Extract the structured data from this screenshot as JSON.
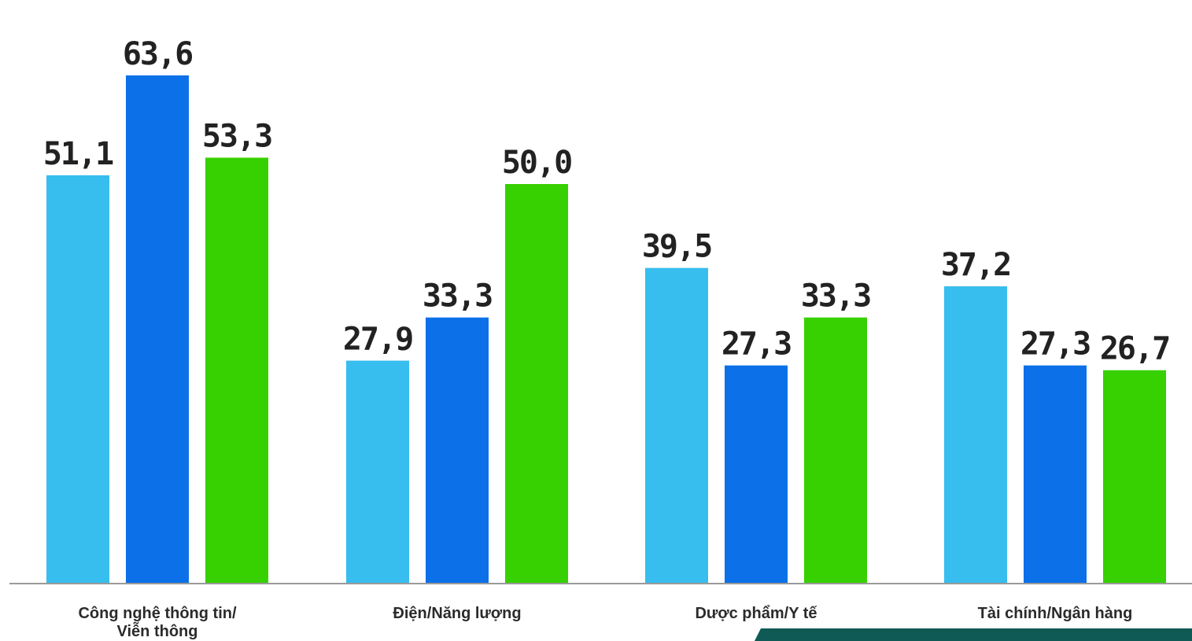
{
  "chart_data": {
    "type": "bar",
    "title": "",
    "xlabel": "",
    "ylabel": "",
    "ylim": [
      0,
      70
    ],
    "grid": false,
    "legend": "none",
    "categories": [
      [
        "Công nghệ thông tin/",
        "Viễn thông"
      ],
      [
        "Điện/Năng lượng"
      ],
      [
        "Dược phẩm/Y tế"
      ],
      [
        "Tài chính/Ngân hàng"
      ]
    ],
    "series": [
      {
        "color": "#37bdee",
        "values": [
          51.1,
          27.9,
          39.5,
          37.2
        ],
        "labels": [
          "51,1",
          "27,9",
          "39,5",
          "37,2"
        ]
      },
      {
        "color": "#0c70e8",
        "values": [
          63.6,
          33.3,
          27.3,
          27.3
        ],
        "labels": [
          "63,6",
          "33,3",
          "27,3",
          "27,3"
        ]
      },
      {
        "color": "#37d000",
        "values": [
          53.3,
          50.0,
          33.3,
          26.7
        ],
        "labels": [
          "53,3",
          "50,0",
          "33,3",
          "26,7"
        ]
      }
    ]
  },
  "colors": {
    "axis": "#9a9a9a",
    "corner_accent": "#0f5a55"
  }
}
